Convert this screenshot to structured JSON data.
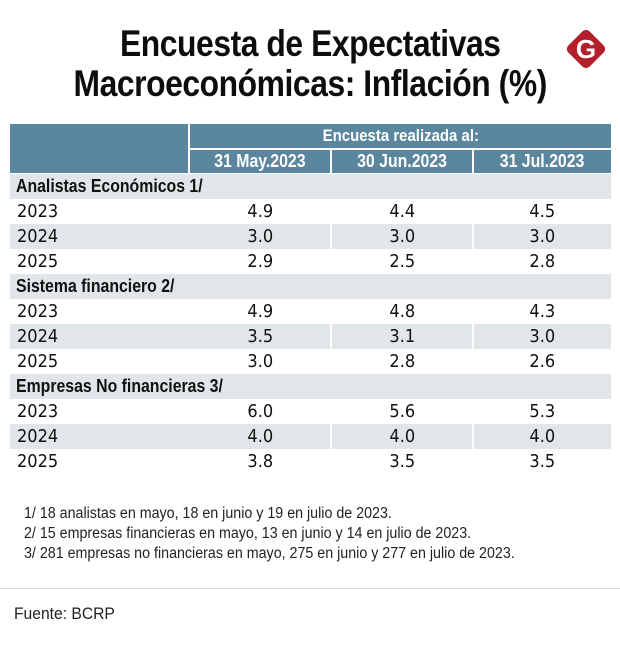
{
  "title": {
    "line1": "Encuesta de Expectativas",
    "line2": "Macroeconómicas: Inflación (%)"
  },
  "logo": {
    "icon": "g-diamond-logo",
    "letter": "G",
    "color": "#b3202b"
  },
  "colors": {
    "header_bg": "#5a869e",
    "shaded_bg": "#e1e6e9",
    "header_text": "#ffffff"
  },
  "chart_data": {
    "type": "table",
    "title": "Encuesta de Expectativas Macroeconómicas: Inflación (%)",
    "header_group": "Encuesta realizada al:",
    "columns": [
      "31 May.2023",
      "30 Jun.2023",
      "31 Jul.2023"
    ],
    "sections": [
      {
        "name": "Analistas Económicos 1/",
        "rows": [
          {
            "label": "2023",
            "values": [
              "4.9",
              "4.4",
              "4.5"
            ]
          },
          {
            "label": "2024",
            "values": [
              "3.0",
              "3.0",
              "3.0"
            ]
          },
          {
            "label": "2025",
            "values": [
              "2.9",
              "2.5",
              "2.8"
            ]
          }
        ]
      },
      {
        "name": "Sistema financiero 2/",
        "rows": [
          {
            "label": "2023",
            "values": [
              "4.9",
              "4.8",
              "4.3"
            ]
          },
          {
            "label": "2024",
            "values": [
              "3.5",
              "3.1",
              "3.0"
            ]
          },
          {
            "label": "2025",
            "values": [
              "3.0",
              "2.8",
              "2.6"
            ]
          }
        ]
      },
      {
        "name": "Empresas No financieras 3/",
        "rows": [
          {
            "label": "2023",
            "values": [
              "6.0",
              "5.6",
              "5.3"
            ]
          },
          {
            "label": "2024",
            "values": [
              "4.0",
              "4.0",
              "4.0"
            ]
          },
          {
            "label": "2025",
            "values": [
              "3.8",
              "3.5",
              "3.5"
            ]
          }
        ]
      }
    ]
  },
  "footnotes": [
    "1/ 18 analistas en mayo, 18 en junio y 19 en julio de 2023.",
    "2/ 15 empresas financieras en mayo, 13 en junio y 14 en julio de 2023.",
    "3/ 281 empresas no financieras en mayo, 275 en junio y 277 en julio de 2023."
  ],
  "source": "Fuente: BCRP"
}
